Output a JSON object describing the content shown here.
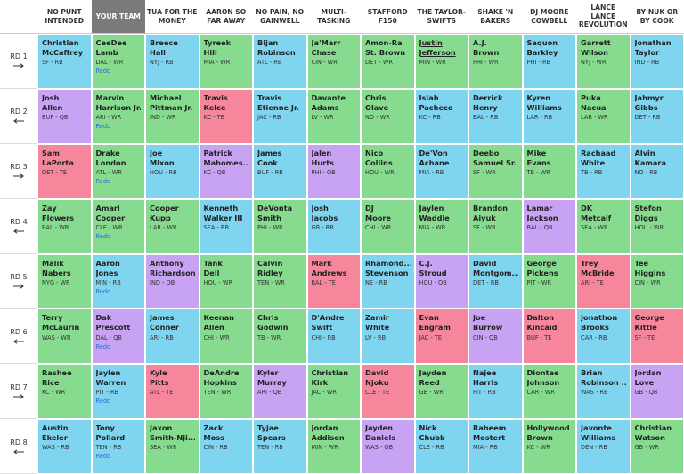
{
  "teams": [
    "NO PUNT INTENDED",
    "YOUR TEAM",
    "TUA FOR THE MONEY",
    "AARON SO FAR AWAY",
    "NO PAIN, NO GAINWELL",
    "MULTI-TASKING",
    "STAFFORD F150",
    "THE TAYLOR-SWIFTS",
    "SHAKE 'N BAKERS",
    "DJ MOORE COWBELL",
    "LANCE LANCE REVOLUTION",
    "BY NUK OR BY COOK"
  ],
  "position_colors": {
    "QB": "#c8a2f3",
    "RB": "#7fd4ef",
    "WR": "#86db8f",
    "TE": "#f5869c"
  },
  "rounds": [
    {
      "label": "RD 1",
      "picks": [
        {
          "first": "Christian",
          "last": "McCaffrey",
          "meta": "SF - RB"
        },
        {
          "first": "CeeDee",
          "last": "Lamb",
          "meta": "DAL - WR",
          "action": "Redo"
        },
        {
          "first": "Breece",
          "last": "Hall",
          "meta": "NYJ - RB"
        },
        {
          "first": "Tyreek",
          "last": "Hill",
          "meta": "MIA - WR"
        },
        {
          "first": "Bijan",
          "last": "Robinson",
          "meta": "ATL - RB"
        },
        {
          "first": "Ja'Marr",
          "last": "Chase",
          "meta": "CIN - WR"
        },
        {
          "first": "Amon-Ra",
          "last": "St. Brown",
          "meta": "DET - WR"
        },
        {
          "first": "Justin",
          "last": "Jefferson",
          "meta": "MIN - WR"
        },
        {
          "first": "A.J.",
          "last": "Brown",
          "meta": "PHI - WR"
        },
        {
          "first": "Saquon",
          "last": "Barkley",
          "meta": "PHI - RB"
        },
        {
          "first": "Garrett",
          "last": "Wilson",
          "meta": "NYJ - WR"
        },
        {
          "first": "Jonathan",
          "last": "Taylor",
          "meta": "IND - RB"
        }
      ]
    },
    {
      "label": "RD 2",
      "picks": [
        {
          "first": "Josh",
          "last": "Allen",
          "meta": "BUF - QB"
        },
        {
          "first": "Marvin",
          "last": "Harrison Jr.",
          "meta": "ARI - WR",
          "action": "Redo"
        },
        {
          "first": "Michael",
          "last": "Pittman Jr.",
          "meta": "IND - WR"
        },
        {
          "first": "Travis",
          "last": "Kelce",
          "meta": "KC - TE"
        },
        {
          "first": "Travis",
          "last": "Etienne Jr.",
          "meta": "JAC - RB"
        },
        {
          "first": "Davante",
          "last": "Adams",
          "meta": "LV - WR"
        },
        {
          "first": "Chris",
          "last": "Olave",
          "meta": "NO - WR"
        },
        {
          "first": "Isiah",
          "last": "Pacheco",
          "meta": "KC - RB"
        },
        {
          "first": "Derrick",
          "last": "Henry",
          "meta": "BAL - RB"
        },
        {
          "first": "Kyren",
          "last": "Williams",
          "meta": "LAR - RB"
        },
        {
          "first": "Puka",
          "last": "Nacua",
          "meta": "LAR - WR"
        },
        {
          "first": "Jahmyr",
          "last": "Gibbs",
          "meta": "DET - RB"
        }
      ]
    },
    {
      "label": "RD 3",
      "picks": [
        {
          "first": "Sam",
          "last": "LaPorta",
          "meta": "DET - TE"
        },
        {
          "first": "Drake",
          "last": "London",
          "meta": "ATL - WR",
          "action": "Redo"
        },
        {
          "first": "Joe",
          "last": "Mixon",
          "meta": "HOU - RB"
        },
        {
          "first": "Patrick",
          "last": "Mahomes...",
          "meta": "KC - QB"
        },
        {
          "first": "James",
          "last": "Cook",
          "meta": "BUF - RB"
        },
        {
          "first": "Jalen",
          "last": "Hurts",
          "meta": "PHI - QB"
        },
        {
          "first": "Nico",
          "last": "Collins",
          "meta": "HOU - WR"
        },
        {
          "first": "De'Von",
          "last": "Achane",
          "meta": "MIA - RB"
        },
        {
          "first": "Deebo",
          "last": "Samuel Sr.",
          "meta": "SF - WR"
        },
        {
          "first": "Mike",
          "last": "Evans",
          "meta": "TB - WR"
        },
        {
          "first": "Rachaad",
          "last": "White",
          "meta": "TB - RB"
        },
        {
          "first": "Alvin",
          "last": "Kamara",
          "meta": "NO - RB"
        }
      ]
    },
    {
      "label": "RD 4",
      "picks": [
        {
          "first": "Zay",
          "last": "Flowers",
          "meta": "BAL - WR"
        },
        {
          "first": "Amari",
          "last": "Cooper",
          "meta": "CLE - WR",
          "action": "Redo"
        },
        {
          "first": "Cooper",
          "last": "Kupp",
          "meta": "LAR - WR"
        },
        {
          "first": "Kenneth",
          "last": "Walker III",
          "meta": "SEA - RB"
        },
        {
          "first": "DeVonta",
          "last": "Smith",
          "meta": "PHI - WR"
        },
        {
          "first": "Josh",
          "last": "Jacobs",
          "meta": "GB - RB"
        },
        {
          "first": "DJ",
          "last": "Moore",
          "meta": "CHI - WR"
        },
        {
          "first": "Jaylen",
          "last": "Waddle",
          "meta": "MIA - WR"
        },
        {
          "first": "Brandon",
          "last": "Aiyuk",
          "meta": "SF - WR"
        },
        {
          "first": "Lamar",
          "last": "Jackson",
          "meta": "BAL - QB"
        },
        {
          "first": "DK",
          "last": "Metcalf",
          "meta": "SEA - WR"
        },
        {
          "first": "Stefon",
          "last": "Diggs",
          "meta": "HOU - WR"
        }
      ]
    },
    {
      "label": "RD 5",
      "picks": [
        {
          "first": "Malik",
          "last": "Nabers",
          "meta": "NYG - WR"
        },
        {
          "first": "Aaron",
          "last": "Jones",
          "meta": "MIN - RB",
          "action": "Redo"
        },
        {
          "first": "Anthony",
          "last": "Richardson",
          "meta": "IND - QB"
        },
        {
          "first": "Tank",
          "last": "Dell",
          "meta": "HOU - WR"
        },
        {
          "first": "Calvin",
          "last": "Ridley",
          "meta": "TEN - WR"
        },
        {
          "first": "Mark",
          "last": "Andrews",
          "meta": "BAL - TE"
        },
        {
          "first": "Rhamond...",
          "last": "Stevenson",
          "meta": "NE - RB"
        },
        {
          "first": "C.J.",
          "last": "Stroud",
          "meta": "HOU - QB"
        },
        {
          "first": "David",
          "last": "Montgom...",
          "meta": "DET - RB"
        },
        {
          "first": "George",
          "last": "Pickens",
          "meta": "PIT - WR"
        },
        {
          "first": "Trey",
          "last": "McBride",
          "meta": "ARI - TE"
        },
        {
          "first": "Tee",
          "last": "Higgins",
          "meta": "CIN - WR"
        }
      ]
    },
    {
      "label": "RD 6",
      "picks": [
        {
          "first": "Terry",
          "last": "McLaurin",
          "meta": "WAS - WR"
        },
        {
          "first": "Dak",
          "last": "Prescott",
          "meta": "DAL - QB",
          "action": "Redo"
        },
        {
          "first": "James",
          "last": "Conner",
          "meta": "ARI - RB"
        },
        {
          "first": "Keenan",
          "last": "Allen",
          "meta": "CHI - WR"
        },
        {
          "first": "Chris",
          "last": "Godwin",
          "meta": "TB - WR"
        },
        {
          "first": "D'Andre",
          "last": "Swift",
          "meta": "CHI - RB"
        },
        {
          "first": "Zamir",
          "last": "White",
          "meta": "LV - RB"
        },
        {
          "first": "Evan",
          "last": "Engram",
          "meta": "JAC - TE"
        },
        {
          "first": "Joe",
          "last": "Burrow",
          "meta": "CIN - QB"
        },
        {
          "first": "Dalton",
          "last": "Kincaid",
          "meta": "BUF - TE"
        },
        {
          "first": "Jonathon",
          "last": "Brooks",
          "meta": "CAR - RB"
        },
        {
          "first": "George",
          "last": "Kittle",
          "meta": "SF - TE"
        }
      ]
    },
    {
      "label": "RD 7",
      "picks": [
        {
          "first": "Rashee",
          "last": "Rice",
          "meta": "KC - WR"
        },
        {
          "first": "Jaylen",
          "last": "Warren",
          "meta": "PIT - RB",
          "action": "Redo"
        },
        {
          "first": "Kyle",
          "last": "Pitts",
          "meta": "ATL - TE"
        },
        {
          "first": "DeAndre",
          "last": "Hopkins",
          "meta": "TEN - WR"
        },
        {
          "first": "Kyler",
          "last": "Murray",
          "meta": "ARI - QB"
        },
        {
          "first": "Christian",
          "last": "Kirk",
          "meta": "JAC - WR"
        },
        {
          "first": "David",
          "last": "Njoku",
          "meta": "CLE - TE"
        },
        {
          "first": "Jayden",
          "last": "Reed",
          "meta": "GB - WR"
        },
        {
          "first": "Najee",
          "last": "Harris",
          "meta": "PIT - RB"
        },
        {
          "first": "Diontae",
          "last": "Johnson",
          "meta": "CAR - WR"
        },
        {
          "first": "Brian",
          "last": "Robinson ...",
          "meta": "WAS - RB"
        },
        {
          "first": "Jordan",
          "last": "Love",
          "meta": "GB - QB"
        }
      ]
    },
    {
      "label": "RD 8",
      "picks": [
        {
          "first": "Austin",
          "last": "Ekeler",
          "meta": "WAS - RB"
        },
        {
          "first": "Tony",
          "last": "Pollard",
          "meta": "TEN - RB",
          "action": "Redo"
        },
        {
          "first": "Jaxon",
          "last": "Smith-Nji...",
          "meta": "SEA - WR"
        },
        {
          "first": "Zack",
          "last": "Moss",
          "meta": "CIN - RB"
        },
        {
          "first": "Tyjae",
          "last": "Spears",
          "meta": "TEN - RB"
        },
        {
          "first": "Jordan",
          "last": "Addison",
          "meta": "MIN - WR"
        },
        {
          "first": "Jayden",
          "last": "Daniels",
          "meta": "WAS - QB"
        },
        {
          "first": "Nick",
          "last": "Chubb",
          "meta": "CLE - RB"
        },
        {
          "first": "Raheem",
          "last": "Mostert",
          "meta": "MIA - RB"
        },
        {
          "first": "Hollywood",
          "last": "Brown",
          "meta": "KC - WR"
        },
        {
          "first": "Javonte",
          "last": "Williams",
          "meta": "DEN - RB"
        },
        {
          "first": "Christian",
          "last": "Watson",
          "meta": "GB - WR"
        }
      ]
    }
  ]
}
